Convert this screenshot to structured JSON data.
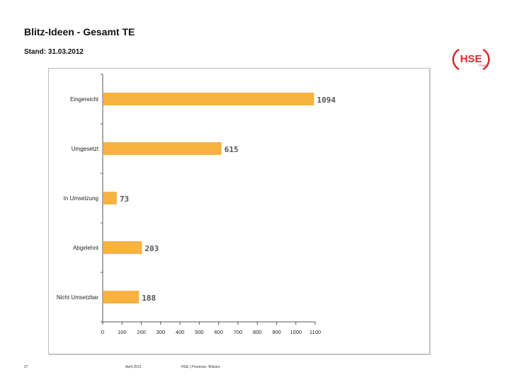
{
  "header": {
    "title": "Blitz-Ideen - Gesamt TE",
    "subtitle": "Stand: 31.03.2012"
  },
  "logo": {
    "text": "HSE",
    "tagline": "TE/AWS",
    "color": "#d8262f"
  },
  "footer": {
    "page_number": "27",
    "date": "April 2012",
    "claim": "HSE | Prozesse. Wissen."
  },
  "chart_data": {
    "type": "bar",
    "orientation": "horizontal",
    "title": "",
    "xlabel": "",
    "ylabel": "",
    "categories": [
      "Eingereicht",
      "Umgesetzt",
      "In Umsetzung",
      "Abgelehnt",
      "Nicht Umsetzbar"
    ],
    "values": [
      1094,
      615,
      73,
      203,
      188
    ],
    "value_labels": [
      "1094",
      "615",
      "73",
      "203",
      "188"
    ],
    "xlim": [
      0,
      1100
    ],
    "xticks": [
      "0",
      "100",
      "200",
      "300",
      "400",
      "500",
      "600",
      "700",
      "800",
      "900",
      "1000",
      "1100"
    ],
    "bar_color": "#f7b240",
    "grid": false,
    "legend": "none"
  }
}
